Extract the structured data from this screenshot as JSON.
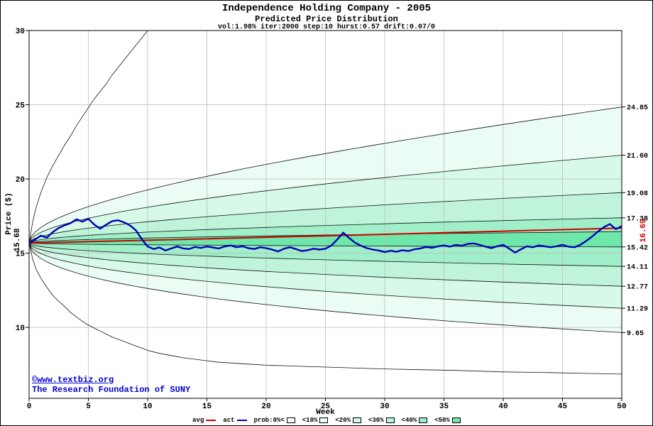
{
  "colors": {
    "avg": "#cc0000",
    "act": "#0000b4",
    "grid": "#bdbdbd",
    "frame": "#000000",
    "copyright": "#0000cc"
  },
  "copyright": {
    "line1": "©www.textbiz.org",
    "line2": "The Research Foundation of SUNY"
  },
  "legend": {
    "avg_label": "avg",
    "act_label": "act"
  },
  "chart_data": {
    "type": "fan-chart (probability bands) with average and actual price lines",
    "title": "Independence Holding Company - 2005",
    "subtitle": "Predicted Price Distribution",
    "params_line": "vol:1.98% iter:2000 step:10 hurst:0.57 drift:0.07/0",
    "params": {
      "vol": "1.98%",
      "iter": 2000,
      "step": 10,
      "hurst": 0.57,
      "drift": "0.07/0"
    },
    "xlabel": "Week",
    "ylabel": "Price ($)",
    "xlim": [
      0,
      50
    ],
    "ylim": [
      5.22,
      30
    ],
    "x_ticks": [
      0,
      5,
      10,
      15,
      20,
      25,
      30,
      35,
      40,
      45,
      50
    ],
    "y_ticks": [
      10,
      15,
      20,
      25,
      30
    ],
    "start_price": 15.68,
    "start_label": "15.68",
    "avg_end_label": "16.69",
    "right_labels": [
      "24.85",
      "21.60",
      "19.08",
      "17.38",
      "15.42",
      "14.11",
      "12.77",
      "11.29",
      "9.65"
    ],
    "bands": [
      {
        "label": "prob:0%<",
        "color": "#ffffff"
      },
      {
        "label": "<10%",
        "color": "#eafcf3",
        "upper_end": 24.85,
        "lower_end": 9.65
      },
      {
        "label": "<20%",
        "color": "#d7f9e8",
        "upper_end": 21.6,
        "lower_end": 11.29
      },
      {
        "label": "<30%",
        "color": "#bff4da",
        "upper_end": 19.08,
        "lower_end": 12.77
      },
      {
        "label": "<40%",
        "color": "#a0efc8",
        "upper_end": 17.38,
        "lower_end": 14.11
      },
      {
        "label": "<50%",
        "color": "#6fe7ab",
        "upper_end": 16.45,
        "lower_end": 15.42
      }
    ],
    "outer_top": [
      [
        0,
        15.68
      ],
      [
        0.3,
        17.1
      ],
      [
        0.6,
        18.1
      ],
      [
        1,
        19.1
      ],
      [
        1.5,
        20.1
      ],
      [
        2,
        20.9
      ],
      [
        2.5,
        21.6
      ],
      [
        3,
        22.3
      ],
      [
        3.5,
        22.9
      ],
      [
        4,
        23.6
      ],
      [
        4.5,
        24.2
      ],
      [
        5,
        24.8
      ],
      [
        5.5,
        25.4
      ],
      [
        6,
        25.9
      ],
      [
        6.5,
        26.4
      ],
      [
        7,
        27.0
      ],
      [
        7.5,
        27.5
      ],
      [
        8,
        28.0
      ],
      [
        8.5,
        28.5
      ],
      [
        9,
        29.0
      ],
      [
        9.5,
        29.5
      ],
      [
        10,
        30.0
      ],
      [
        11,
        30.8
      ],
      [
        50,
        31.5
      ]
    ],
    "outer_bottom": [
      [
        0,
        15.68
      ],
      [
        0.3,
        14.6
      ],
      [
        0.6,
        13.9
      ],
      [
        1,
        13.3
      ],
      [
        1.5,
        12.7
      ],
      [
        2,
        12.15
      ],
      [
        2.5,
        11.75
      ],
      [
        3,
        11.4
      ],
      [
        3.5,
        11.0
      ],
      [
        4,
        10.7
      ],
      [
        4.5,
        10.4
      ],
      [
        5,
        10.15
      ],
      [
        5.5,
        9.95
      ],
      [
        6,
        9.75
      ],
      [
        6.5,
        9.55
      ],
      [
        7,
        9.35
      ],
      [
        7.5,
        9.2
      ],
      [
        8,
        9.05
      ],
      [
        8.5,
        8.9
      ],
      [
        9,
        8.75
      ],
      [
        9.5,
        8.6
      ],
      [
        10,
        8.45
      ],
      [
        11,
        8.25
      ],
      [
        12,
        8.1
      ],
      [
        13,
        7.95
      ],
      [
        14,
        7.85
      ],
      [
        15,
        7.75
      ],
      [
        16,
        7.65
      ],
      [
        17,
        7.6
      ],
      [
        18,
        7.55
      ],
      [
        19,
        7.5
      ],
      [
        20,
        7.45
      ],
      [
        22,
        7.4
      ],
      [
        24,
        7.35
      ],
      [
        26,
        7.3
      ],
      [
        28,
        7.25
      ],
      [
        30,
        7.2
      ],
      [
        33,
        7.15
      ],
      [
        36,
        7.1
      ],
      [
        40,
        7.0
      ],
      [
        44,
        6.95
      ],
      [
        47,
        6.9
      ],
      [
        50,
        6.85
      ]
    ],
    "series": [
      {
        "name": "avg",
        "color": "#cc0000",
        "points": [
          [
            0,
            15.68
          ],
          [
            10,
            15.87
          ],
          [
            20,
            16.07
          ],
          [
            30,
            16.27
          ],
          [
            40,
            16.48
          ],
          [
            50,
            16.69
          ]
        ]
      },
      {
        "name": "act",
        "color": "#0000b4",
        "points": [
          [
            0,
            15.68
          ],
          [
            0.5,
            15.92
          ],
          [
            1,
            16.18
          ],
          [
            1.5,
            16.05
          ],
          [
            2,
            16.42
          ],
          [
            2.5,
            16.7
          ],
          [
            3,
            16.88
          ],
          [
            3.5,
            17.02
          ],
          [
            4,
            17.28
          ],
          [
            4.5,
            17.12
          ],
          [
            5,
            17.32
          ],
          [
            5.5,
            16.92
          ],
          [
            6,
            16.65
          ],
          [
            6.5,
            16.92
          ],
          [
            7,
            17.15
          ],
          [
            7.5,
            17.22
          ],
          [
            8,
            17.08
          ],
          [
            8.5,
            16.88
          ],
          [
            9,
            16.55
          ],
          [
            9.5,
            15.95
          ],
          [
            10,
            15.45
          ],
          [
            10.5,
            15.28
          ],
          [
            11,
            15.38
          ],
          [
            11.5,
            15.18
          ],
          [
            12,
            15.32
          ],
          [
            12.5,
            15.45
          ],
          [
            13,
            15.32
          ],
          [
            13.5,
            15.28
          ],
          [
            14,
            15.42
          ],
          [
            14.5,
            15.35
          ],
          [
            15,
            15.45
          ],
          [
            15.5,
            15.38
          ],
          [
            16,
            15.32
          ],
          [
            16.5,
            15.45
          ],
          [
            17,
            15.52
          ],
          [
            17.5,
            15.4
          ],
          [
            18,
            15.46
          ],
          [
            18.5,
            15.34
          ],
          [
            19,
            15.28
          ],
          [
            19.5,
            15.4
          ],
          [
            20,
            15.34
          ],
          [
            20.5,
            15.24
          ],
          [
            21,
            15.12
          ],
          [
            21.5,
            15.3
          ],
          [
            22,
            15.4
          ],
          [
            22.5,
            15.28
          ],
          [
            23,
            15.14
          ],
          [
            23.5,
            15.2
          ],
          [
            24,
            15.3
          ],
          [
            24.5,
            15.24
          ],
          [
            25,
            15.3
          ],
          [
            25.5,
            15.52
          ],
          [
            26,
            15.92
          ],
          [
            26.5,
            16.38
          ],
          [
            27,
            16.02
          ],
          [
            27.5,
            15.7
          ],
          [
            28,
            15.5
          ],
          [
            28.5,
            15.34
          ],
          [
            29,
            15.24
          ],
          [
            29.5,
            15.18
          ],
          [
            30,
            15.08
          ],
          [
            30.5,
            15.16
          ],
          [
            31,
            15.1
          ],
          [
            31.5,
            15.2
          ],
          [
            32,
            15.14
          ],
          [
            32.5,
            15.26
          ],
          [
            33,
            15.32
          ],
          [
            33.5,
            15.42
          ],
          [
            34,
            15.36
          ],
          [
            34.5,
            15.46
          ],
          [
            35,
            15.52
          ],
          [
            35.5,
            15.44
          ],
          [
            36,
            15.56
          ],
          [
            36.5,
            15.5
          ],
          [
            37,
            15.62
          ],
          [
            37.5,
            15.66
          ],
          [
            38,
            15.56
          ],
          [
            38.5,
            15.44
          ],
          [
            39,
            15.34
          ],
          [
            39.5,
            15.46
          ],
          [
            40,
            15.56
          ],
          [
            40.5,
            15.3
          ],
          [
            41,
            15.04
          ],
          [
            41.5,
            15.26
          ],
          [
            42,
            15.46
          ],
          [
            42.5,
            15.4
          ],
          [
            43,
            15.52
          ],
          [
            43.5,
            15.46
          ],
          [
            44,
            15.4
          ],
          [
            44.5,
            15.46
          ],
          [
            45,
            15.56
          ],
          [
            45.5,
            15.44
          ],
          [
            46,
            15.4
          ],
          [
            46.5,
            15.56
          ],
          [
            47,
            15.82
          ],
          [
            47.5,
            16.12
          ],
          [
            48,
            16.46
          ],
          [
            48.5,
            16.76
          ],
          [
            49,
            16.96
          ],
          [
            49.5,
            16.62
          ],
          [
            50,
            16.82
          ]
        ]
      }
    ]
  }
}
